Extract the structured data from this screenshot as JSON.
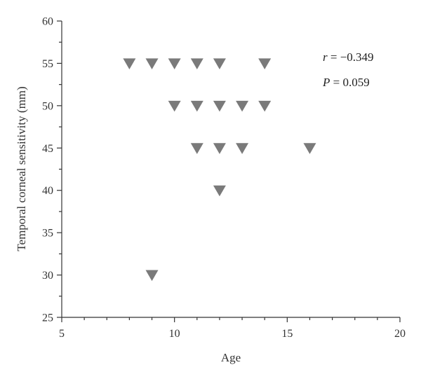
{
  "chart_data": {
    "type": "scatter",
    "xlabel": "Age",
    "ylabel": "Temporal corneal sensitivity (mm)",
    "xlim": [
      5,
      20
    ],
    "ylim": [
      25,
      60
    ],
    "x_ticks": [
      5,
      10,
      15,
      20
    ],
    "y_ticks": [
      25,
      30,
      35,
      40,
      45,
      50,
      55,
      60
    ],
    "marker": "triangle-down",
    "marker_color": "#7a7a7a",
    "grid": false,
    "points": [
      {
        "x": 8,
        "y": 55
      },
      {
        "x": 9,
        "y": 55
      },
      {
        "x": 10,
        "y": 55
      },
      {
        "x": 11,
        "y": 55
      },
      {
        "x": 12,
        "y": 55
      },
      {
        "x": 14,
        "y": 55
      },
      {
        "x": 10,
        "y": 50
      },
      {
        "x": 11,
        "y": 50
      },
      {
        "x": 12,
        "y": 50
      },
      {
        "x": 13,
        "y": 50
      },
      {
        "x": 14,
        "y": 50
      },
      {
        "x": 11,
        "y": 45
      },
      {
        "x": 12,
        "y": 45
      },
      {
        "x": 13,
        "y": 45
      },
      {
        "x": 16,
        "y": 45
      },
      {
        "x": 12,
        "y": 40
      },
      {
        "x": 9,
        "y": 30
      }
    ],
    "annotations": {
      "r_symbol": "r",
      "r_value": " = −0.349",
      "p_symbol": "P",
      "p_value": " = 0.059"
    }
  }
}
